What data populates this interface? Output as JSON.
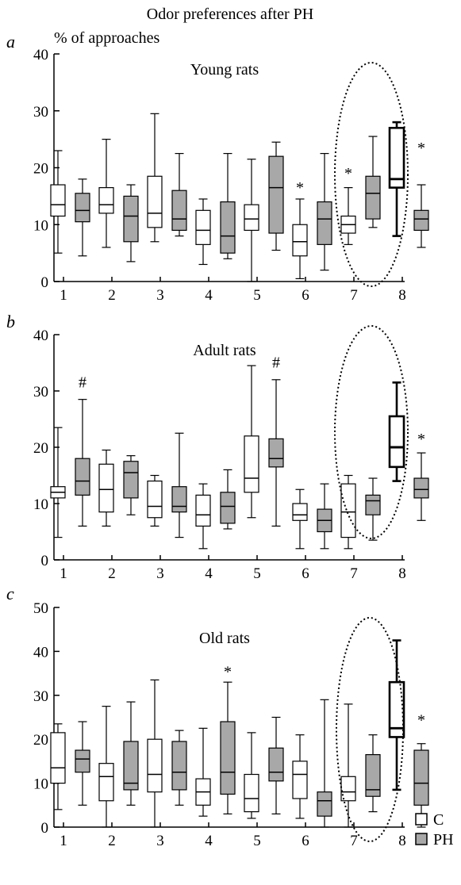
{
  "figure_title": "Odor preferences after PH",
  "y_axis_label": "% of approaches",
  "legend": [
    {
      "label": "C",
      "color": "#ffffff"
    },
    {
      "label": "PH",
      "color": "#a8a8a8"
    }
  ],
  "chart_data": [
    {
      "type": "boxplot",
      "panel": "a",
      "title": "Young rats",
      "categories": [
        "1",
        "2",
        "3",
        "4",
        "5",
        "6",
        "7",
        "8"
      ],
      "ylim": [
        0,
        40
      ],
      "yticks": [
        0,
        10,
        20,
        30,
        40
      ],
      "series": [
        {
          "name": "C",
          "color": "#ffffff",
          "boxes": [
            {
              "min": 5,
              "q1": 11.5,
              "median": 13.5,
              "q3": 17,
              "max": 23
            },
            {
              "min": 6,
              "q1": 12,
              "median": 13.5,
              "q3": 16.5,
              "max": 25
            },
            {
              "min": 7,
              "q1": 9.5,
              "median": 12,
              "q3": 18.5,
              "max": 29.5
            },
            {
              "min": 3,
              "q1": 6.5,
              "median": 9,
              "q3": 12.5,
              "max": 14.5
            },
            {
              "min": 0,
              "q1": 9,
              "median": 11,
              "q3": 13.5,
              "max": 21.5
            },
            {
              "min": 0.5,
              "q1": 4.5,
              "median": 7,
              "q3": 10,
              "max": 14.5
            },
            {
              "min": 6.5,
              "q1": 8.5,
              "median": 10,
              "q3": 11.5,
              "max": 16.5
            },
            {
              "min": 8,
              "q1": 16.5,
              "median": 18,
              "q3": 27,
              "max": 28
            }
          ]
        },
        {
          "name": "PH",
          "color": "#a8a8a8",
          "boxes": [
            {
              "min": 4.5,
              "q1": 10.5,
              "median": 12.5,
              "q3": 15.5,
              "max": 18
            },
            {
              "min": 3.5,
              "q1": 7,
              "median": 11.5,
              "q3": 15,
              "max": 17
            },
            {
              "min": 8,
              "q1": 9,
              "median": 11,
              "q3": 16,
              "max": 22.5
            },
            {
              "min": 4,
              "q1": 5,
              "median": 8,
              "q3": 14,
              "max": 22.5
            },
            {
              "min": 5.5,
              "q1": 8.5,
              "median": 16.5,
              "q3": 22,
              "max": 24.5
            },
            {
              "min": 2,
              "q1": 6.5,
              "median": 11,
              "q3": 14,
              "max": 22.5
            },
            {
              "min": 9.5,
              "q1": 11,
              "median": 15.5,
              "q3": 18.5,
              "max": 25.5
            },
            {
              "min": 6,
              "q1": 9,
              "median": 11,
              "q3": 12.5,
              "max": 17
            }
          ]
        }
      ],
      "annotations": [
        {
          "category": "6",
          "series": "C",
          "text": "*",
          "y": 17
        },
        {
          "category": "7",
          "series": "C",
          "text": "*",
          "y": 19.5
        },
        {
          "category": "8",
          "series": "PH",
          "text": "*",
          "y": 24
        }
      ]
    },
    {
      "type": "boxplot",
      "panel": "b",
      "title": "Adult rats",
      "categories": [
        "1",
        "2",
        "3",
        "4",
        "5",
        "6",
        "7",
        "8"
      ],
      "ylim": [
        0,
        40
      ],
      "yticks": [
        0,
        10,
        20,
        30,
        40
      ],
      "series": [
        {
          "name": "C",
          "color": "#ffffff",
          "boxes": [
            {
              "min": 4,
              "q1": 11,
              "median": 12,
              "q3": 13,
              "max": 23.5
            },
            {
              "min": 6,
              "q1": 8.5,
              "median": 12.5,
              "q3": 17,
              "max": 19.5
            },
            {
              "min": 6,
              "q1": 7.5,
              "median": 9.5,
              "q3": 14,
              "max": 15
            },
            {
              "min": 2,
              "q1": 6,
              "median": 8,
              "q3": 11.5,
              "max": 13.5
            },
            {
              "min": 7.5,
              "q1": 12,
              "median": 14.5,
              "q3": 22,
              "max": 34.5
            },
            {
              "min": 2,
              "q1": 7,
              "median": 8,
              "q3": 10,
              "max": 12.5
            },
            {
              "min": 2,
              "q1": 4,
              "median": 8.5,
              "q3": 13.5,
              "max": 15
            },
            {
              "min": 14,
              "q1": 16.5,
              "median": 20,
              "q3": 25.5,
              "max": 31.5
            }
          ]
        },
        {
          "name": "PH",
          "color": "#a8a8a8",
          "boxes": [
            {
              "min": 6,
              "q1": 11.5,
              "median": 14,
              "q3": 18,
              "max": 28.5
            },
            {
              "min": 8,
              "q1": 11,
              "median": 15.5,
              "q3": 17.5,
              "max": 18.5
            },
            {
              "min": 4,
              "q1": 8.5,
              "median": 9.5,
              "q3": 13,
              "max": 22.5
            },
            {
              "min": 5.5,
              "q1": 6.5,
              "median": 9.5,
              "q3": 12,
              "max": 16
            },
            {
              "min": 6,
              "q1": 16.5,
              "median": 18,
              "q3": 21.5,
              "max": 32
            },
            {
              "min": 2,
              "q1": 5,
              "median": 7,
              "q3": 9,
              "max": 13.5
            },
            {
              "min": 3.5,
              "q1": 8,
              "median": 10.5,
              "q3": 11.5,
              "max": 14.5
            },
            {
              "min": 7,
              "q1": 11,
              "median": 12.5,
              "q3": 14.5,
              "max": 19
            }
          ]
        }
      ],
      "annotations": [
        {
          "category": "1",
          "series": "PH",
          "text": "#",
          "y": 31.5
        },
        {
          "category": "5",
          "series": "PH",
          "text": "#",
          "y": 35
        },
        {
          "category": "8",
          "series": "PH",
          "text": "*",
          "y": 22
        }
      ]
    },
    {
      "type": "boxplot",
      "panel": "c",
      "title": "Old rats",
      "categories": [
        "1",
        "2",
        "3",
        "4",
        "5",
        "6",
        "7",
        "8"
      ],
      "ylim": [
        0,
        50
      ],
      "yticks": [
        0,
        10,
        20,
        30,
        40,
        50
      ],
      "series": [
        {
          "name": "C",
          "color": "#ffffff",
          "boxes": [
            {
              "min": 4,
              "q1": 10,
              "median": 13.5,
              "q3": 21.5,
              "max": 23.5
            },
            {
              "min": 0,
              "q1": 6,
              "median": 11.5,
              "q3": 14.5,
              "max": 27.5
            },
            {
              "min": 0,
              "q1": 8,
              "median": 12,
              "q3": 20,
              "max": 33.5
            },
            {
              "min": 2.5,
              "q1": 5,
              "median": 8,
              "q3": 11,
              "max": 22.5
            },
            {
              "min": 2,
              "q1": 3.5,
              "median": 6.5,
              "q3": 12,
              "max": 21.5
            },
            {
              "min": 2,
              "q1": 6.5,
              "median": 12,
              "q3": 15,
              "max": 21
            },
            {
              "min": 0,
              "q1": 6,
              "median": 8,
              "q3": 11.5,
              "max": 28
            },
            {
              "min": 8.5,
              "q1": 20.5,
              "median": 22.5,
              "q3": 33,
              "max": 42.5
            }
          ]
        },
        {
          "name": "PH",
          "color": "#a8a8a8",
          "boxes": [
            {
              "min": 5,
              "q1": 12.5,
              "median": 15.5,
              "q3": 17.5,
              "max": 24
            },
            {
              "min": 5,
              "q1": 8.5,
              "median": 10,
              "q3": 19.5,
              "max": 28.5
            },
            {
              "min": 5,
              "q1": 8.5,
              "median": 12.5,
              "q3": 19.5,
              "max": 22
            },
            {
              "min": 3,
              "q1": 7.5,
              "median": 12.5,
              "q3": 24,
              "max": 33
            },
            {
              "min": 3,
              "q1": 10.5,
              "median": 12.5,
              "q3": 18,
              "max": 25
            },
            {
              "min": 0,
              "q1": 2.5,
              "median": 6,
              "q3": 8,
              "max": 29
            },
            {
              "min": 3.5,
              "q1": 7,
              "median": 8.5,
              "q3": 16.5,
              "max": 21
            },
            {
              "min": 0,
              "q1": 5,
              "median": 10,
              "q3": 17.5,
              "max": 19
            }
          ]
        }
      ],
      "annotations": [
        {
          "category": "4",
          "series": "PH",
          "text": "*",
          "y": 36
        },
        {
          "category": "8",
          "series": "PH",
          "text": "*",
          "y": 25
        }
      ]
    }
  ]
}
